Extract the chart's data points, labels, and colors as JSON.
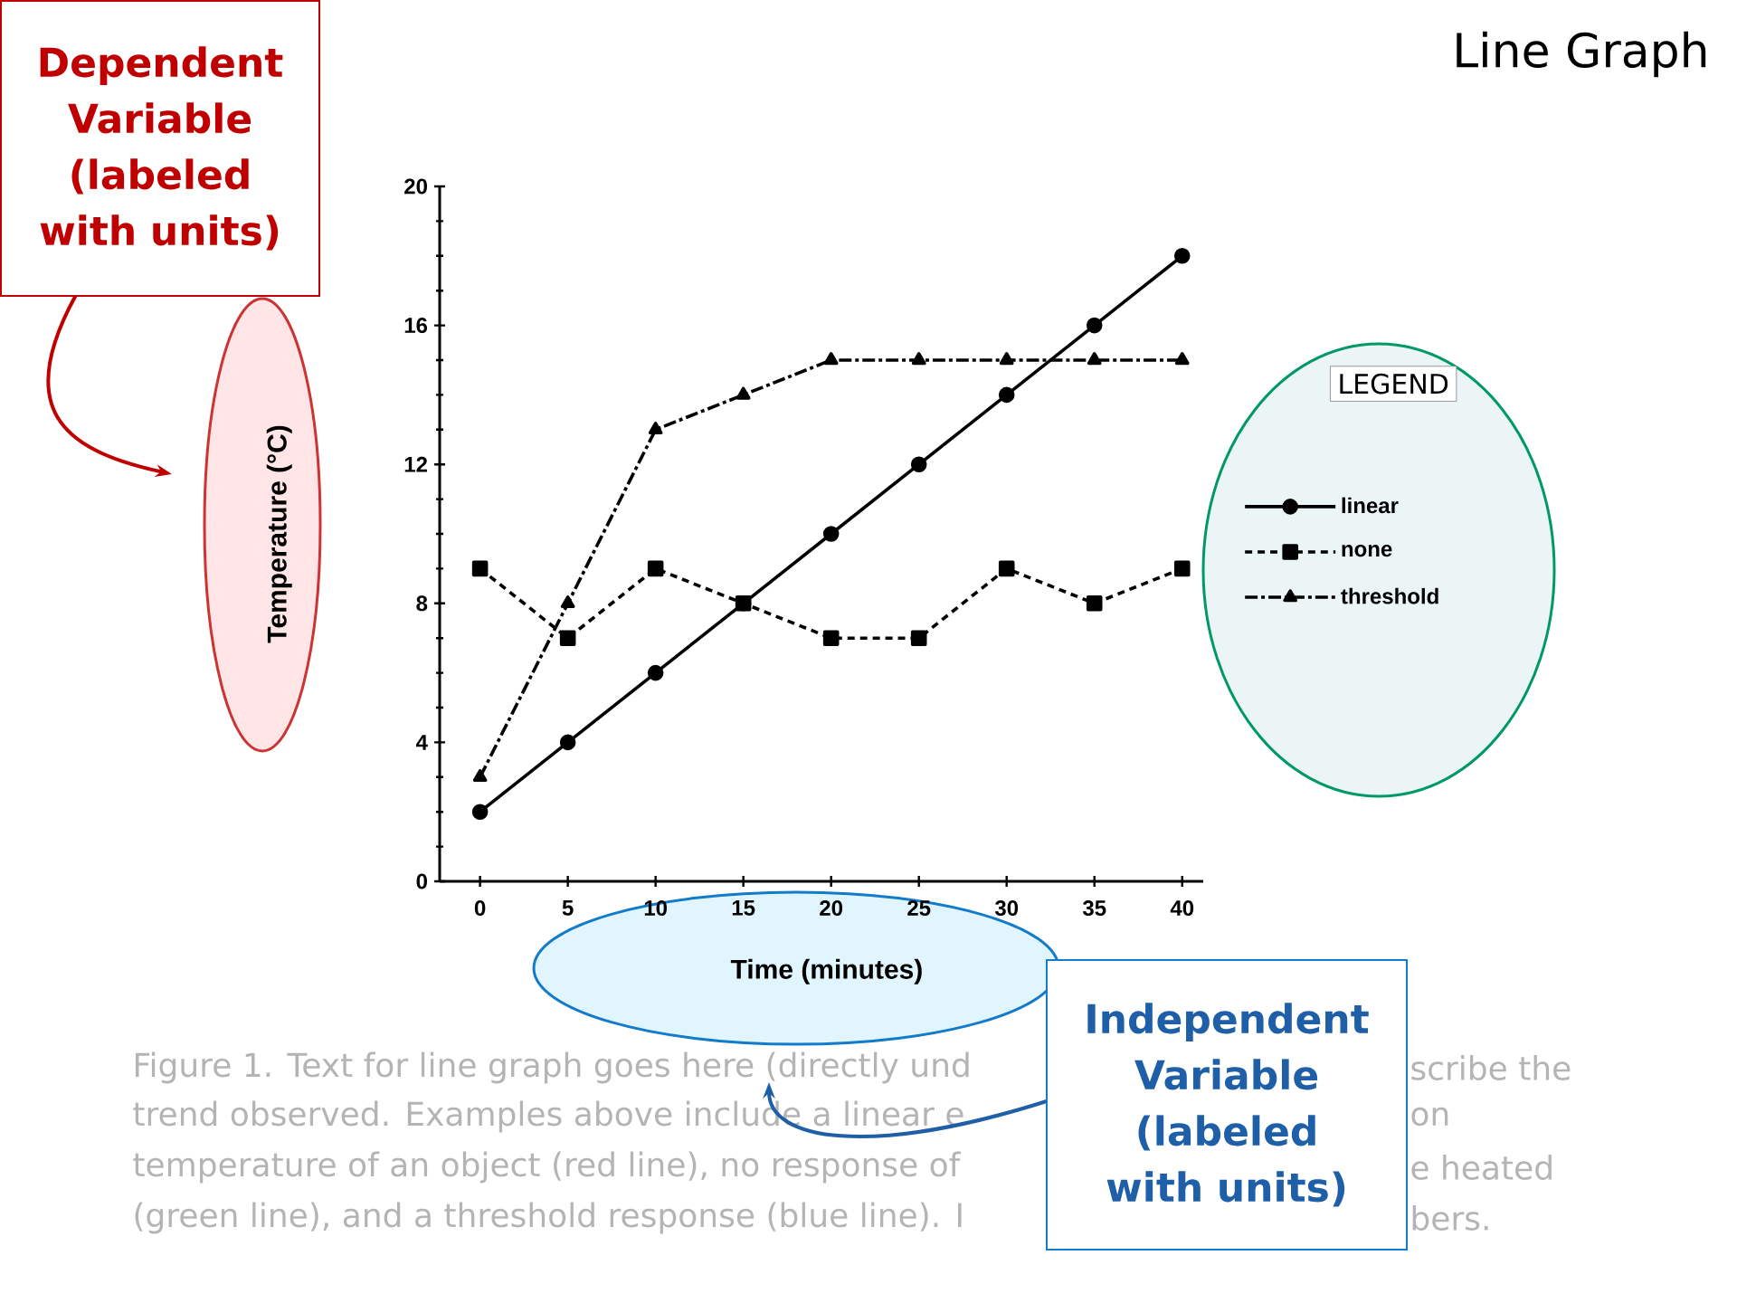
{
  "chart_data": {
    "type": "line",
    "title": "Line Graph",
    "xlabel": "Time (minutes)",
    "ylabel": "Temperature (°C)",
    "legend_title": "LEGEND",
    "legend": "right",
    "x": [
      0,
      5,
      10,
      15,
      20,
      25,
      30,
      35,
      40
    ],
    "xlim": [
      -2.3,
      41.2
    ],
    "xticks": [
      0,
      5,
      10,
      15,
      20,
      25,
      30,
      35,
      40
    ],
    "ylim": [
      0,
      20
    ],
    "yticks": [
      0,
      4,
      8,
      12,
      16,
      20
    ],
    "series": [
      {
        "name": "linear",
        "color": "#000000",
        "marker": "circle",
        "line_style": "solid",
        "values": [
          2,
          4,
          6,
          8,
          10,
          12,
          14,
          16,
          18
        ]
      },
      {
        "name": "none",
        "color": "#000000",
        "marker": "square",
        "line_style": "dashed",
        "values": [
          9,
          7,
          9,
          8,
          7,
          7,
          9,
          8,
          9
        ]
      },
      {
        "name": "threshold",
        "color": "#000000",
        "marker": "triangle",
        "line_style": "dashdot",
        "values": [
          3,
          8,
          13,
          14,
          15,
          15,
          15,
          15,
          15
        ]
      }
    ],
    "annotations": [
      "Dependent Variable (labeled with units)",
      "Independent Variable (labeled with units)",
      "Figure 1.  Text for line graph goes here (directly und",
      "trend observed.  Examples above include a linear e",
      "temperature of an object (red line), no response of",
      "(green line), and a threshold response (blue line).  I",
      "scribe the",
      "on",
      "e  heated",
      "bers."
    ]
  }
}
